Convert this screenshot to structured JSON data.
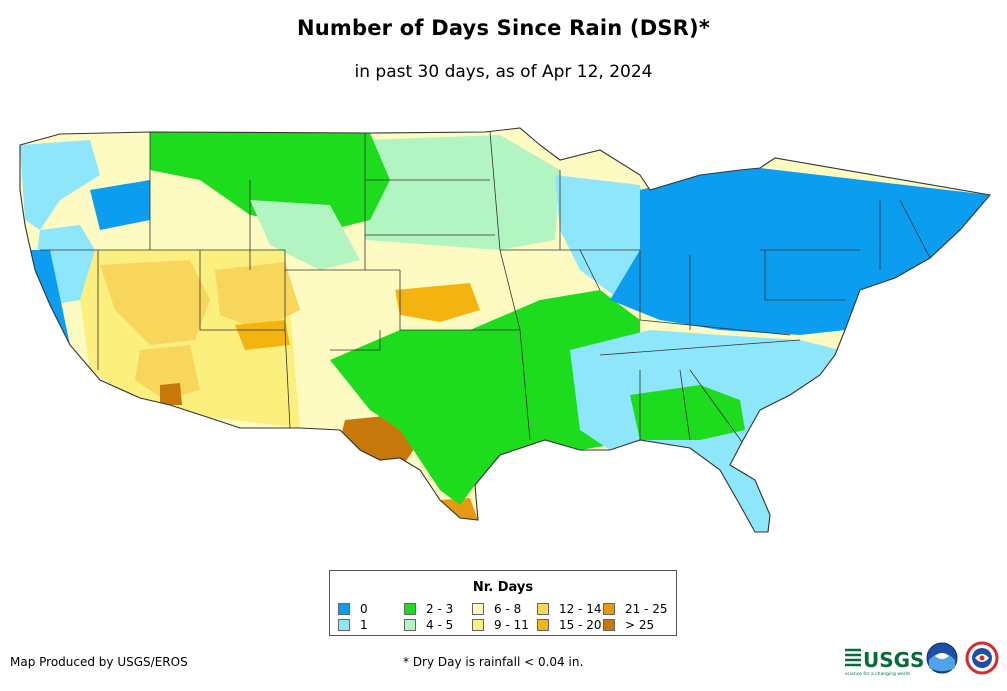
{
  "header": {
    "title": "Number of Days Since Rain (DSR)*",
    "subtitle": "in past 30 days, as of Apr 12, 2024"
  },
  "legend": {
    "title": "Nr. Days",
    "items": [
      {
        "label": "0",
        "color": "#0b9ef0"
      },
      {
        "label": "1",
        "color": "#8ee6fb"
      },
      {
        "label": "2 - 3",
        "color": "#1ddc1d"
      },
      {
        "label": "4 - 5",
        "color": "#b2f5c2"
      },
      {
        "label": "6 - 8",
        "color": "#fdfbc2"
      },
      {
        "label": "9 - 11",
        "color": "#fbef7e"
      },
      {
        "label": "12 - 14",
        "color": "#f8d65c"
      },
      {
        "label": "15 - 20",
        "color": "#f3b40f"
      },
      {
        "label": "21 - 25",
        "color": "#e49a12"
      },
      {
        "label": "> 25",
        "color": "#c7780a"
      }
    ]
  },
  "footer": {
    "credit": "Map Produced by USGS/EROS",
    "footnote": "* Dry Day is rainfall < 0.04 in.",
    "logos": [
      "USGS",
      "NOAA",
      "National Weather Service"
    ],
    "usgs_text": "USGS",
    "usgs_tagline": "science for a changing world"
  },
  "colors": {
    "state_border": "#333333",
    "usgs_green": "#0a6b3a"
  }
}
